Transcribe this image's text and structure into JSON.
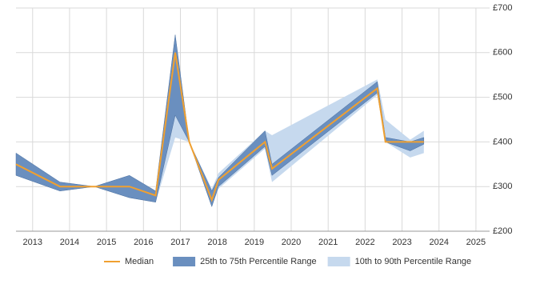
{
  "chart_data": {
    "type": "line",
    "x": [
      2012.55,
      2013.74,
      2014.67,
      2015.62,
      2016.33,
      2016.86,
      2017.24,
      2017.85,
      2018.03,
      2019.29,
      2019.48,
      2022.33,
      2022.55,
      2023.22,
      2023.59
    ],
    "series": [
      {
        "name": "Median",
        "color": "#f0a030",
        "values": [
          350,
          300,
          300,
          300,
          280,
          600,
          400,
          270,
          315,
          400,
          340,
          520,
          400,
          400,
          400
        ]
      }
    ],
    "bands": [
      {
        "name": "10th to 90th Percentile Range",
        "color": "#c6d9ee",
        "low": [
          325,
          290,
          300,
          275,
          265,
          410,
          400,
          255,
          295,
          385,
          310,
          505,
          400,
          365,
          375
        ],
        "high": [
          375,
          310,
          300,
          325,
          290,
          620,
          400,
          295,
          330,
          425,
          415,
          540,
          450,
          405,
          425
        ]
      },
      {
        "name": "25th to 75th Percentile Range",
        "color": "#6a8fbf",
        "low": [
          325,
          290,
          300,
          275,
          265,
          460,
          400,
          255,
          300,
          390,
          325,
          510,
          400,
          380,
          395
        ],
        "high": [
          375,
          310,
          300,
          325,
          290,
          640,
          400,
          290,
          320,
          425,
          350,
          535,
          410,
          400,
          410
        ]
      }
    ],
    "legend_order": [
      0,
      1
    ],
    "xlim": [
      2012.55,
      2025.37
    ],
    "xticks": [
      2013,
      2014,
      2015,
      2016,
      2017,
      2018,
      2019,
      2020,
      2021,
      2022,
      2023,
      2024,
      2025
    ],
    "ylim": [
      200,
      700
    ],
    "yticks": [
      {
        "value": 200,
        "label": "£200"
      },
      {
        "value": 300,
        "label": "£300"
      },
      {
        "value": 400,
        "label": "£400"
      },
      {
        "value": 500,
        "label": "£500"
      },
      {
        "value": 600,
        "label": "£600"
      },
      {
        "value": 700,
        "label": "£700"
      }
    ],
    "grid": true
  }
}
